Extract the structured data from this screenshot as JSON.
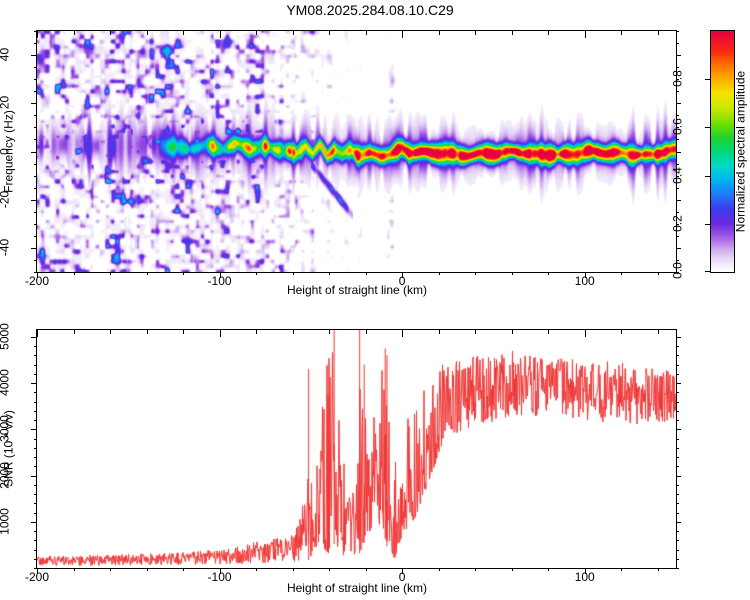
{
  "title": "YM08.2025.284.08.10.C29",
  "colors": {
    "snr_line": "#ee3433",
    "frame": "#000000",
    "background": "#ffffff"
  },
  "top_panel": {
    "ylabel": "Frequency (Hz)",
    "xlabel": "Height of straight line (km)",
    "x_range": [
      -200,
      150
    ],
    "y_range": [
      -50,
      50
    ],
    "x_minor_step": 20,
    "y_minor_step": 5,
    "xticks": [
      {
        "v": -200,
        "label": "-200"
      },
      {
        "v": -100,
        "label": "-100"
      },
      {
        "v": 0,
        "label": "0"
      },
      {
        "v": 100,
        "label": "100"
      }
    ],
    "yticks": [
      {
        "v": 40,
        "label": "40"
      },
      {
        "v": 20,
        "label": "20"
      },
      {
        "v": 0,
        "label": "0"
      },
      {
        "v": -20,
        "label": "-20"
      },
      {
        "v": -40,
        "label": "-40"
      }
    ]
  },
  "colorbar": {
    "label": "Normalized spectral amplitude",
    "range": [
      0,
      1
    ],
    "ticks": [
      {
        "v": 0.0,
        "label": "0.0"
      },
      {
        "v": 0.2,
        "label": "0.2"
      },
      {
        "v": 0.4,
        "label": "0.4"
      },
      {
        "v": 0.6,
        "label": "0.6"
      },
      {
        "v": 0.8,
        "label": "0.8"
      }
    ],
    "stops": [
      [
        0,
        "#ffffff"
      ],
      [
        0.05,
        "#eadcf7"
      ],
      [
        0.1,
        "#c9a0ee"
      ],
      [
        0.15,
        "#9c54e4"
      ],
      [
        0.2,
        "#6a2ce0"
      ],
      [
        0.26,
        "#3b3cee"
      ],
      [
        0.32,
        "#2079f8"
      ],
      [
        0.38,
        "#00b4f0"
      ],
      [
        0.44,
        "#00d8c8"
      ],
      [
        0.5,
        "#00d878"
      ],
      [
        0.56,
        "#20d428"
      ],
      [
        0.62,
        "#7ce000"
      ],
      [
        0.68,
        "#c8e800"
      ],
      [
        0.74,
        "#f4e400"
      ],
      [
        0.8,
        "#ffb000"
      ],
      [
        0.86,
        "#ff7000"
      ],
      [
        0.92,
        "#f82814"
      ],
      [
        1.0,
        "#e80040"
      ]
    ]
  },
  "bottom_panel": {
    "ylabel": "SNR (10 * v/v)",
    "xlabel": "Height of straight line (km)",
    "x_range": [
      -200,
      150
    ],
    "y_range": [
      0,
      5150
    ],
    "x_minor_step": 20,
    "y_minor_step": 200,
    "xticks": [
      {
        "v": -200,
        "label": "-200"
      },
      {
        "v": -100,
        "label": "-100"
      },
      {
        "v": 0,
        "label": "0"
      },
      {
        "v": 100,
        "label": "100"
      }
    ],
    "yticks": [
      {
        "v": 1000,
        "label": "1000"
      },
      {
        "v": 2000,
        "label": "2000"
      },
      {
        "v": 3000,
        "label": "3000"
      },
      {
        "v": 4000,
        "label": "4000"
      },
      {
        "v": 5000,
        "label": "5000"
      }
    ]
  },
  "chart_data": [
    {
      "type": "heatmap",
      "name": "doppler-spectrogram",
      "title": "YM08.2025.284.08.10.C29",
      "xlabel": "Height of straight line (km)",
      "ylabel": "Frequency (Hz)",
      "zlabel": "Normalized spectral amplitude",
      "x_range": [
        -200,
        150
      ],
      "y_range": [
        -50,
        50
      ],
      "z_range": [
        0,
        1
      ],
      "noise_density_profile": [
        [
          -200,
          1
        ],
        [
          -85,
          1
        ],
        [
          -70,
          0.8
        ],
        [
          -58,
          0.45
        ],
        [
          -50,
          0.22
        ],
        [
          -42,
          0.1
        ],
        [
          -34,
          0.05
        ],
        [
          -24,
          0.03
        ],
        [
          -10,
          0.02
        ],
        [
          20,
          0.015
        ],
        [
          150,
          0.012
        ]
      ],
      "noise_value_max": 0.38,
      "vertical_streaks": [
        {
          "km": -49,
          "strength": 0.5,
          "width_km": 1.6
        },
        {
          "km": -40,
          "strength": 0.35,
          "width_km": 1.2
        },
        {
          "km": -31.5,
          "strength": 0.3,
          "width_km": 1.6
        },
        {
          "km": -23,
          "strength": 0.22,
          "width_km": 1.1
        },
        {
          "km": -6,
          "strength": 0.45,
          "width_km": 2.0
        }
      ],
      "band_center_hz": [
        [
          -132,
          2.5
        ],
        [
          -118,
          1.5
        ],
        [
          -108,
          3
        ],
        [
          -98,
          1
        ],
        [
          -90,
          2.5
        ],
        [
          -82,
          0.8
        ],
        [
          -74,
          2.2
        ],
        [
          -66,
          1.2
        ],
        [
          -58,
          -0.5
        ],
        [
          -53,
          2.8
        ],
        [
          -49,
          -1.5
        ],
        [
          -45,
          2.2
        ],
        [
          -41,
          -2.2
        ],
        [
          -37,
          0.5
        ],
        [
          -33,
          -1.8
        ],
        [
          -28,
          0.6
        ],
        [
          -24,
          -1.2
        ],
        [
          -18,
          -0.2
        ],
        [
          -12,
          -1.4
        ],
        [
          -6,
          -0.6
        ],
        [
          0,
          1
        ],
        [
          4,
          -1
        ],
        [
          10,
          -0.6
        ],
        [
          16,
          -1.2
        ],
        [
          24,
          -0.4
        ],
        [
          32,
          -1.2
        ],
        [
          42,
          -0.6
        ],
        [
          52,
          -1.3
        ],
        [
          62,
          -0.5
        ],
        [
          72,
          -1.2
        ],
        [
          82,
          -0.6
        ],
        [
          92,
          -1.1
        ],
        [
          102,
          -0.4
        ],
        [
          112,
          -1.2
        ],
        [
          122,
          -0.6
        ],
        [
          132,
          -1
        ],
        [
          142,
          -0.3
        ],
        [
          150,
          0.3
        ]
      ],
      "band_intensity": [
        [
          -133,
          0
        ],
        [
          -127,
          0.3
        ],
        [
          -120,
          0.42
        ],
        [
          -112,
          0.38
        ],
        [
          -104,
          0.5
        ],
        [
          -96,
          0.55
        ],
        [
          -88,
          0.52
        ],
        [
          -80,
          0.6
        ],
        [
          -72,
          0.58
        ],
        [
          -64,
          0.66
        ],
        [
          -56,
          0.62
        ],
        [
          -50,
          0.72
        ],
        [
          -44,
          0.68
        ],
        [
          -38,
          0.75
        ],
        [
          -32,
          0.7
        ],
        [
          -26,
          0.78
        ],
        [
          -20,
          0.8
        ],
        [
          -14,
          0.78
        ],
        [
          -8,
          0.88
        ],
        [
          -2,
          0.95
        ],
        [
          4,
          0.9
        ],
        [
          10,
          0.96
        ],
        [
          20,
          0.92
        ],
        [
          30,
          0.97
        ],
        [
          150,
          0.95
        ]
      ],
      "band_sigma_hz": 2.0,
      "halo_intensity": 0.16,
      "diagonal_tail": {
        "x1": -49,
        "f1": -6,
        "x2": -32,
        "f2": -22,
        "width_hz": 1.4,
        "intensity": 0.3
      }
    },
    {
      "type": "line",
      "name": "snr-profile",
      "xlabel": "Height of straight line (km)",
      "ylabel": "SNR (10 * v/v)",
      "x_range": [
        -200,
        150
      ],
      "y_range": [
        0,
        5150
      ],
      "line_color": "#ee3433",
      "envelope_points": [
        [
          -200,
          30,
          230
        ],
        [
          -170,
          30,
          260
        ],
        [
          -140,
          40,
          290
        ],
        [
          -115,
          50,
          330
        ],
        [
          -95,
          60,
          420
        ],
        [
          -82,
          70,
          520
        ],
        [
          -72,
          90,
          650
        ],
        [
          -64,
          100,
          600
        ],
        [
          -58,
          120,
          900
        ],
        [
          -53,
          150,
          1500
        ],
        [
          -51,
          150,
          4300
        ],
        [
          -49,
          120,
          1400
        ],
        [
          -46,
          300,
          2400
        ],
        [
          -43,
          400,
          3700
        ],
        [
          -40,
          300,
          4700
        ],
        [
          -37,
          500,
          5150
        ],
        [
          -34,
          400,
          3900
        ],
        [
          -31,
          200,
          1900
        ],
        [
          -28,
          250,
          1500
        ],
        [
          -25,
          250,
          2700
        ],
        [
          -23,
          300,
          5150
        ],
        [
          -21,
          500,
          3300
        ],
        [
          -18,
          700,
          4200
        ],
        [
          -15,
          600,
          3700
        ],
        [
          -12,
          900,
          4400
        ],
        [
          -9,
          600,
          4800
        ],
        [
          -7,
          300,
          3600
        ],
        [
          -5.5,
          30,
          900
        ],
        [
          -4,
          150,
          2100
        ],
        [
          -2,
          450,
          2700
        ],
        [
          0,
          650,
          3100
        ],
        [
          4,
          900,
          3400
        ],
        [
          8,
          1100,
          3700
        ],
        [
          12,
          1500,
          4000
        ],
        [
          16,
          2000,
          4200
        ],
        [
          22,
          2500,
          4400
        ],
        [
          30,
          2900,
          4500
        ],
        [
          45,
          3100,
          4650
        ],
        [
          60,
          3250,
          4700
        ],
        [
          80,
          3300,
          4600
        ],
        [
          100,
          3200,
          4500
        ],
        [
          120,
          3100,
          4450
        ],
        [
          135,
          3050,
          4380
        ],
        [
          150,
          3200,
          4300
        ]
      ],
      "spikes": [
        [
          -51,
          4300
        ],
        [
          -37,
          5150
        ],
        [
          -23,
          5150
        ],
        [
          -20.5,
          4400
        ],
        [
          -9,
          4750
        ],
        [
          -8,
          4600
        ]
      ]
    }
  ]
}
